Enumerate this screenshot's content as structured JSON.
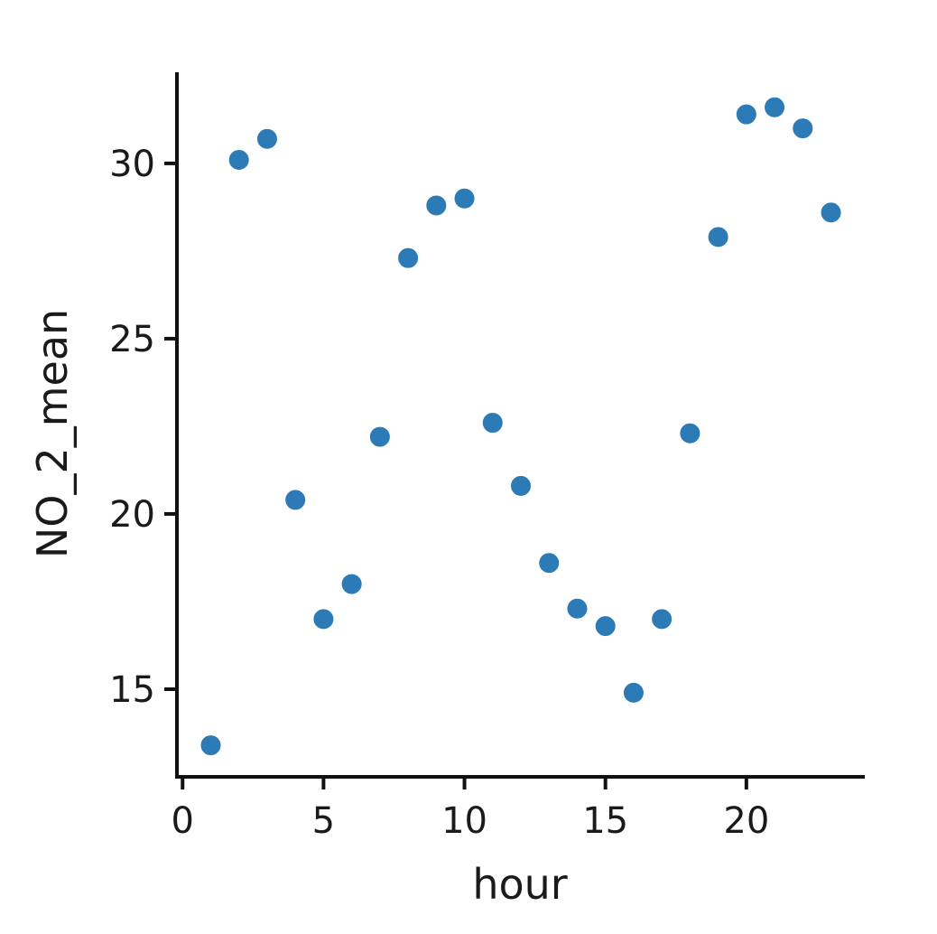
{
  "chart_data": {
    "type": "scatter",
    "xlabel": "hour",
    "ylabel": "NO_2_mean",
    "xlim": [
      -0.2,
      24.2
    ],
    "ylim": [
      12.5,
      32.6
    ],
    "xticks": [
      0,
      5,
      10,
      15,
      20
    ],
    "yticks": [
      15,
      20,
      25,
      30
    ],
    "grid": false,
    "legend": "none",
    "point_color": "#2c7bb6",
    "series": [
      {
        "x": [
          1,
          2,
          3,
          4,
          5,
          6,
          7,
          8,
          9,
          10,
          11,
          12,
          13,
          14,
          15,
          16,
          17,
          18,
          19,
          20,
          21,
          22,
          23
        ],
        "y": [
          13.4,
          30.1,
          30.7,
          20.4,
          17.0,
          18.0,
          22.2,
          27.3,
          28.8,
          29.0,
          22.6,
          20.8,
          18.6,
          17.3,
          16.8,
          14.9,
          17.0,
          22.3,
          27.9,
          31.4,
          31.6,
          31.0,
          28.6
        ]
      }
    ]
  }
}
